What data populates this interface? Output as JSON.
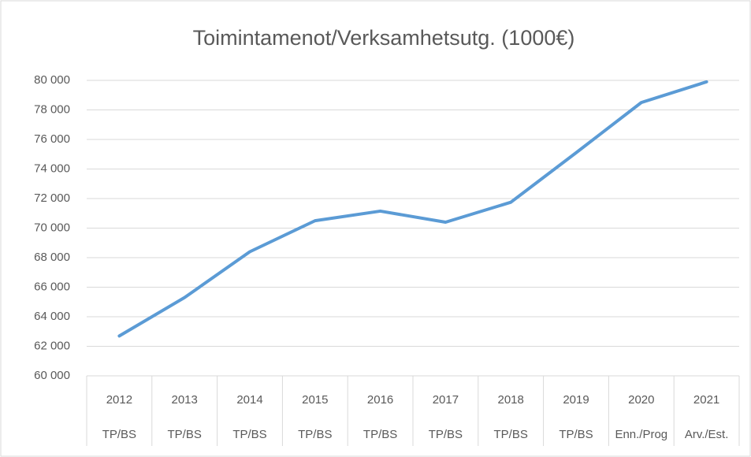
{
  "chart_data": {
    "type": "line",
    "title": "Toimintamenot/Verksamhetsutg. (1000€)",
    "categories": [
      "2012",
      "2013",
      "2014",
      "2015",
      "2016",
      "2017",
      "2018",
      "2019",
      "2020",
      "2021"
    ],
    "category_sublabels": [
      "TP/BS",
      "TP/BS",
      "TP/BS",
      "TP/BS",
      "TP/BS",
      "TP/BS",
      "TP/BS",
      "TP/BS",
      "Enn./Prog",
      "Arv./Est."
    ],
    "series": [
      {
        "name": "Toimintamenot/Verksamhetsutg.",
        "color": "#5b9bd5",
        "values": [
          62700,
          65300,
          68400,
          70500,
          71150,
          70400,
          71750,
          75100,
          78500,
          79900
        ]
      }
    ],
    "ylim": [
      60000,
      80000
    ],
    "yticks": [
      {
        "value": 60000,
        "label": "60 000"
      },
      {
        "value": 62000,
        "label": "62 000"
      },
      {
        "value": 64000,
        "label": "64 000"
      },
      {
        "value": 66000,
        "label": "66 000"
      },
      {
        "value": 68000,
        "label": "68 000"
      },
      {
        "value": 70000,
        "label": "70 000"
      },
      {
        "value": 72000,
        "label": "72 000"
      },
      {
        "value": 74000,
        "label": "74 000"
      },
      {
        "value": 76000,
        "label": "76 000"
      },
      {
        "value": 78000,
        "label": "78 000"
      },
      {
        "value": 80000,
        "label": "80 000"
      }
    ],
    "grid": true
  }
}
